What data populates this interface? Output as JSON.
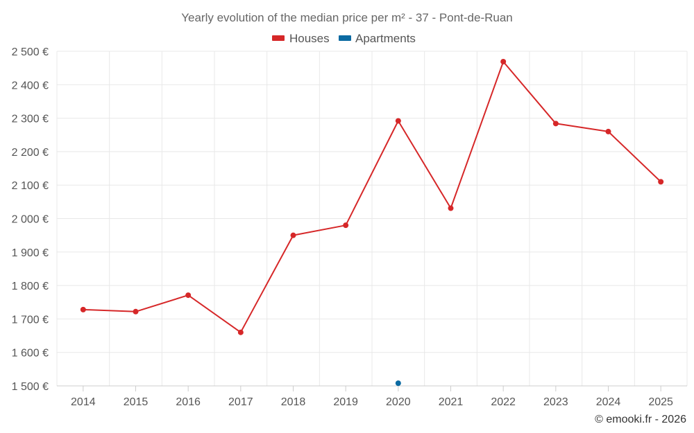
{
  "chart_data": {
    "type": "line",
    "title": "Yearly evolution of the median price per m² - 37 - Pont-de-Ruan",
    "categories": [
      "2014",
      "2015",
      "2016",
      "2017",
      "2018",
      "2019",
      "2020",
      "2021",
      "2022",
      "2023",
      "2024",
      "2025"
    ],
    "ylim": [
      1500,
      2500
    ],
    "yticks": [
      1500,
      1600,
      1700,
      1800,
      1900,
      2000,
      2100,
      2200,
      2300,
      2400,
      2500
    ],
    "ytick_labels": [
      "1 500 €",
      "1 600 €",
      "1 700 €",
      "1 800 €",
      "1 900 €",
      "2 000 €",
      "2 100 €",
      "2 200 €",
      "2 300 €",
      "2 400 €",
      "2 500 €"
    ],
    "grid": true,
    "legend_position": "top-center",
    "series": [
      {
        "name": "Houses",
        "color": "#d62728",
        "values": [
          1728,
          1722,
          1771,
          1660,
          1950,
          1980,
          2292,
          2031,
          2469,
          2284,
          2260,
          2110
        ]
      },
      {
        "name": "Apartments",
        "color": "#0b6aa2",
        "values": [
          null,
          null,
          null,
          null,
          null,
          null,
          1508,
          null,
          null,
          null,
          null,
          null
        ]
      }
    ],
    "credit": "© emooki.fr - 2026"
  }
}
